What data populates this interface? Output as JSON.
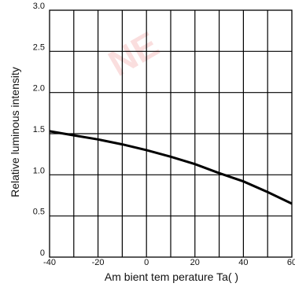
{
  "chart_data": {
    "type": "line",
    "title": "",
    "xlabel": "Am bient tem perature Ta(   )",
    "ylabel": "Relative luminous intensity",
    "xlim": [
      -40,
      60
    ],
    "ylim": [
      0,
      3.0
    ],
    "x_ticks": [
      "-40",
      "-20",
      "0",
      "20",
      "40",
      "60"
    ],
    "y_ticks": [
      "0",
      "0.5",
      "1.0",
      "1.5",
      "2.0",
      "2.5",
      "3.0"
    ],
    "grid": true,
    "series": [
      {
        "x": [
          -40,
          -30,
          -20,
          -10,
          0,
          10,
          20,
          30,
          40,
          50,
          60
        ],
        "y": [
          1.53,
          1.48,
          1.43,
          1.37,
          1.3,
          1.22,
          1.13,
          1.02,
          0.92,
          0.79,
          0.65
        ]
      }
    ],
    "colors": {
      "line": "#000000",
      "grid": "#000000",
      "watermark": "#f4b8b8"
    }
  },
  "watermark": {
    "text": "NE"
  }
}
